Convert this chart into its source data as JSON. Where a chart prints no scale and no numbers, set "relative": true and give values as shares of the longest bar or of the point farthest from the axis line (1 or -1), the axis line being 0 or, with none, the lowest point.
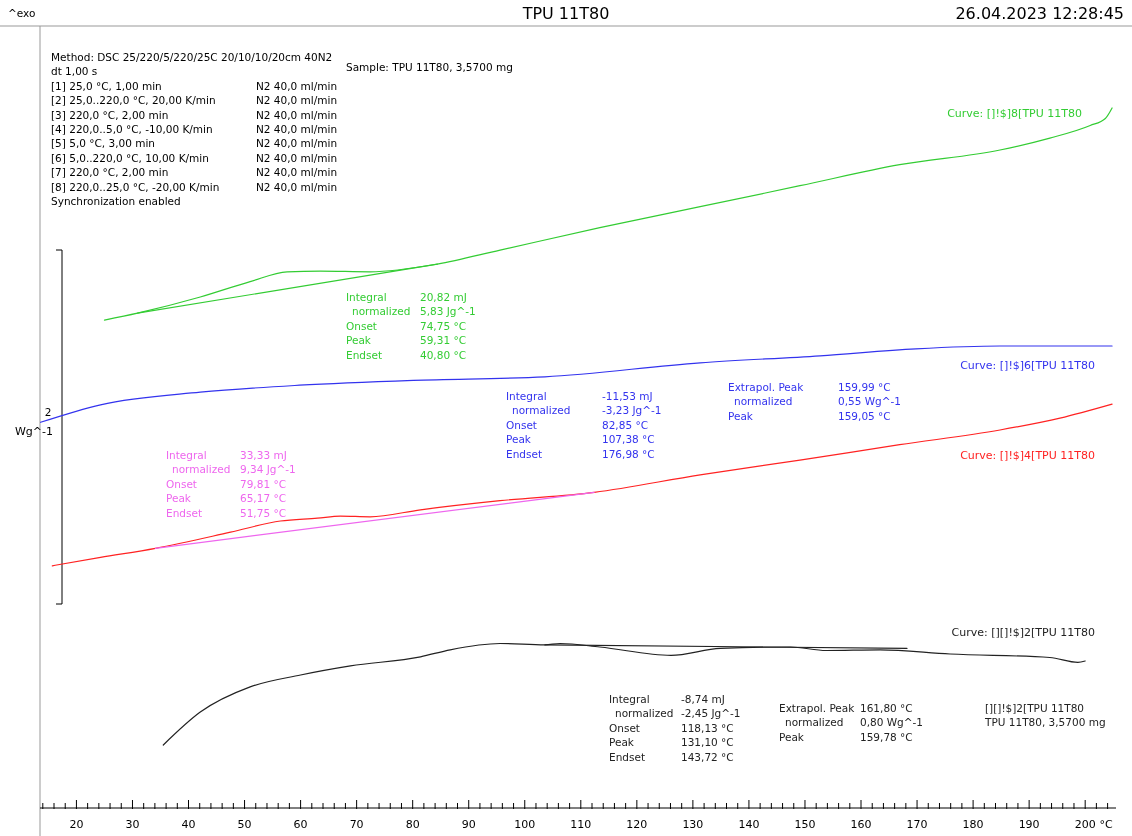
{
  "chart_data": {
    "type": "line",
    "title": "TPU 11T80",
    "subtitle": "26.04.2023 12:28:45",
    "ylabel": "Wg^-1",
    "xlabel": "°C",
    "relative": true,
    "marker": "none",
    "line_style": "solid",
    "grid": false,
    "legend": false,
    "xlim": [
      13.5,
      205.5
    ],
    "xticks": [
      {
        "value": 14,
        "label": null
      },
      {
        "value": 16,
        "label": null
      },
      {
        "value": 18,
        "label": null
      },
      20,
      {
        "value": 22,
        "label": null
      },
      {
        "value": 24,
        "label": null
      },
      {
        "value": 26,
        "label": null
      },
      {
        "value": 28,
        "label": null
      },
      30,
      {
        "value": 32,
        "label": null
      },
      {
        "value": 34,
        "label": null
      },
      {
        "value": 36,
        "label": null
      },
      {
        "value": 38,
        "label": null
      },
      40,
      {
        "value": 42,
        "label": null
      },
      {
        "value": 44,
        "label": null
      },
      {
        "value": 46,
        "label": null
      },
      {
        "value": 48,
        "label": null
      },
      50,
      {
        "value": 52,
        "label": null
      },
      {
        "value": 54,
        "label": null
      },
      {
        "value": 56,
        "label": null
      },
      {
        "value": 58,
        "label": null
      },
      60,
      {
        "value": 62,
        "label": null
      },
      {
        "value": 64,
        "label": null
      },
      {
        "value": 66,
        "label": null
      },
      {
        "value": 68,
        "label": null
      },
      70,
      {
        "value": 72,
        "label": null
      },
      {
        "value": 74,
        "label": null
      },
      {
        "value": 76,
        "label": null
      },
      {
        "value": 78,
        "label": null
      },
      80,
      {
        "value": 82,
        "label": null
      },
      {
        "value": 84,
        "label": null
      },
      {
        "value": 86,
        "label": null
      },
      {
        "value": 88,
        "label": null
      },
      90,
      {
        "value": 92,
        "label": null
      },
      {
        "value": 94,
        "label": null
      },
      {
        "value": 96,
        "label": null
      },
      {
        "value": 98,
        "label": null
      },
      100,
      {
        "value": 102,
        "label": null
      },
      {
        "value": 104,
        "label": null
      },
      {
        "value": 106,
        "label": null
      },
      {
        "value": 108,
        "label": null
      },
      110,
      {
        "value": 112,
        "label": null
      },
      {
        "value": 114,
        "label": null
      },
      {
        "value": 116,
        "label": null
      },
      {
        "value": 118,
        "label": null
      },
      120,
      {
        "value": 122,
        "label": null
      },
      {
        "value": 124,
        "label": null
      },
      {
        "value": 126,
        "label": null
      },
      {
        "value": 128,
        "label": null
      },
      130,
      {
        "value": 132,
        "label": null
      },
      {
        "value": 134,
        "label": null
      },
      {
        "value": 136,
        "label": null
      },
      {
        "value": 138,
        "label": null
      },
      140,
      {
        "value": 142,
        "label": null
      },
      {
        "value": 144,
        "label": null
      },
      {
        "value": 146,
        "label": null
      },
      {
        "value": 148,
        "label": null
      },
      150,
      {
        "value": 152,
        "label": null
      },
      {
        "value": 154,
        "label": null
      },
      {
        "value": 156,
        "label": null
      },
      {
        "value": 158,
        "label": null
      },
      160,
      {
        "value": 162,
        "label": null
      },
      {
        "value": 164,
        "label": null
      },
      {
        "value": 166,
        "label": null
      },
      {
        "value": 168,
        "label": null
      },
      170,
      {
        "value": 172,
        "label": null
      },
      {
        "value": 174,
        "label": null
      },
      {
        "value": 176,
        "label": null
      },
      {
        "value": 178,
        "label": null
      },
      180,
      {
        "value": 182,
        "label": null
      },
      {
        "value": 184,
        "label": null
      },
      {
        "value": 186,
        "label": null
      },
      {
        "value": 188,
        "label": null
      },
      190,
      {
        "value": 192,
        "label": null
      },
      {
        "value": 194,
        "label": null
      },
      {
        "value": 196,
        "label": null
      },
      {
        "value": 198,
        "label": null
      },
      200,
      {
        "value": 202,
        "label": null
      },
      {
        "value": 204,
        "label": null
      }
    ],
    "series": [
      {
        "name": "Curve: []!$]8[TPU 11T80",
        "color": "#33cc33",
        "x": [
          25.0,
          30.9,
          42.1,
          51.0,
          57.6,
          63.5,
          72.4,
          84.4,
          95.6,
          113.4,
          131.3,
          149.1,
          166.9,
          184.8,
          193.7,
          200.9,
          203.6,
          204.8
        ],
        "values": [
          0.697,
          0.707,
          0.73,
          0.752,
          0.766,
          0.767,
          0.766,
          0.777,
          0.797,
          0.829,
          0.859,
          0.889,
          0.919,
          0.94,
          0.957,
          0.975,
          0.985,
          1
        ]
      },
      {
        "color": "#33cc33",
        "x": [
          30.9,
          84.4
        ],
        "values": [
          0.707,
          0.777
        ]
      },
      {
        "name": "Curve: []!$]6[TPU 11T80",
        "color": "#3333ee",
        "x": [
          13.6,
          24.3,
          42.1,
          59.8,
          80.1,
          103.6,
          131.3,
          152.7,
          169.8,
          184.8,
          204.8
        ],
        "values": [
          0.551,
          0.576,
          0.594,
          0.604,
          0.611,
          0.616,
          0.636,
          0.646,
          0.656,
          0.66,
          0.66
        ]
      },
      {
        "name": "Curve: []!$]4[TPU 11T80",
        "color": "#ff2222",
        "x": [
          15.7,
          24.3,
          34.1,
          47.5,
          56.4,
          63.0,
          67.1,
          72.4,
          81.4,
          95.6,
          112.4,
          131.3,
          149.1,
          166.9,
          184.8,
          195.5,
          204.8
        ],
        "values": [
          0.346,
          0.358,
          0.371,
          0.394,
          0.41,
          0.414,
          0.417,
          0.416,
          0.426,
          0.439,
          0.451,
          0.476,
          0.497,
          0.519,
          0.54,
          0.557,
          0.577
        ]
      },
      {
        "color": "#ee66ee",
        "x": [
          34.1,
          112.4
        ],
        "values": [
          0.371,
          0.451
        ]
      },
      {
        "name": "Curve: [][]!$]2[TPU 11T80",
        "color": "#222222",
        "x": [
          35.5,
          42.1,
          51.0,
          60.0,
          68.9,
          81.4,
          86.7,
          95.6,
          103.6,
          106.3,
          113.4,
          126.1,
          134.9,
          147.4,
          153.8,
          163.4,
          175.9,
          193.7,
          198.7,
          200.0
        ],
        "values": [
          0.09,
          0.137,
          0.173,
          0.19,
          0.203,
          0.216,
          0.226,
          0.235,
          0.233,
          0.235,
          0.23,
          0.218,
          0.228,
          0.23,
          0.225,
          0.226,
          0.22,
          0.215,
          0.208,
          0.21
        ]
      },
      {
        "color": "#222222",
        "x": [
          103.6,
          168.2
        ],
        "values": [
          0.233,
          0.228
        ]
      }
    ],
    "annotations": [
      "^exo",
      "Method: DSC 25/220/5/220/25C 20/10/10/20cm 40N2\ndt 1,00 s\n[1] 25,0 °C, 1,00 min\tN2 40,0 ml/min\n[2] 25,0..220,0 °C, 20,00 K/min\tN2 40,0 ml/min\n[3] 220,0 °C, 2,00 min\tN2 40,0 ml/min\n[4] 220,0..5,0 °C, -10,00 K/min\tN2 40,0 ml/min\n[5] 5,0 °C, 3,00 min\tN2 40,0 ml/min\n[6] 5,0..220,0 °C, 10,00 K/min\tN2 40,0 ml/min\n[7] 220,0 °C, 2,00 min\tN2 40,0 ml/min\n[8] 220,0..25,0 °C, -20,00 K/min\tN2 40,0 ml/min\nSynchronization enabled",
      "Sample: TPU 11T80, 3,5700 mg",
      "Integral\t20,82 mJ\n  normalized\t5,83 Jg^-1\nOnset\t74,75 °C\nPeak\t59,31 °C\nEndset\t40,80 °C",
      "Integral\t-11,53 mJ\n  normalized\t-3,23 Jg^-1\nOnset\t82,85 °C\nPeak\t107,38 °C\nEndset\t176,98 °C",
      "Extrapol. Peak\t159,99 °C\n  normalized\t0,55 Wg^-1\nPeak\t159,05 °C",
      "Integral\t33,33 mJ\n  normalized\t9,34 Jg^-1\nOnset\t79,81 °C\nPeak\t65,17 °C\nEndset\t51,75 °C",
      "Integral\t-8,74 mJ\n  normalized\t-2,45 Jg^-1\nOnset\t118,13 °C\nPeak\t131,10 °C\nEndset\t143,72 °C",
      "Extrapol. Peak\t161,80 °C\n  normalized\t0,80 Wg^-1\nPeak\t159,78 °C",
      "[][]!$]2[TPU 11T80\nTPU 11T80, 3,5700 mg",
      "2"
    ]
  }
}
